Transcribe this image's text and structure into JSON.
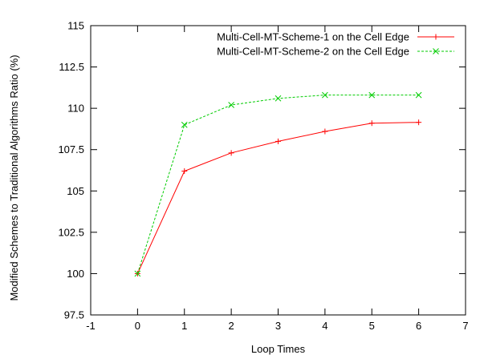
{
  "chart_data": {
    "type": "line",
    "title": "",
    "xlabel": "Loop Times",
    "ylabel": "Modified Schemes to Traditional Algorithms Ratio (%)",
    "xlim": [
      -1,
      7
    ],
    "ylim": [
      97.5,
      115
    ],
    "xticks": [
      -1,
      0,
      1,
      2,
      3,
      4,
      5,
      6,
      7
    ],
    "xtick_labels": [
      "-1",
      "0",
      "1",
      "2",
      "3",
      "4",
      "5",
      "6",
      "7"
    ],
    "yticks": [
      97.5,
      100,
      102.5,
      105,
      107.5,
      110,
      112.5,
      115
    ],
    "ytick_labels": [
      "97.5",
      "100",
      "102.5",
      "105",
      "107.5",
      "110",
      "112.5",
      "115"
    ],
    "grid": false,
    "legend_position": "top-right",
    "x": [
      0,
      1,
      2,
      3,
      4,
      5,
      6
    ],
    "series": [
      {
        "name": "Multi-Cell-MT-Scheme-1 on the Cell Edge",
        "values": [
          100,
          106.2,
          107.3,
          108.0,
          108.6,
          109.1,
          109.15
        ],
        "color": "#ff0000",
        "line_style": "solid",
        "marker": "plus"
      },
      {
        "name": "Multi-Cell-MT-Scheme-2 on the Cell Edge",
        "values": [
          100,
          109.0,
          110.2,
          110.6,
          110.8,
          110.8,
          110.8
        ],
        "color": "#00cc00",
        "line_style": "dashed",
        "marker": "cross"
      }
    ]
  }
}
